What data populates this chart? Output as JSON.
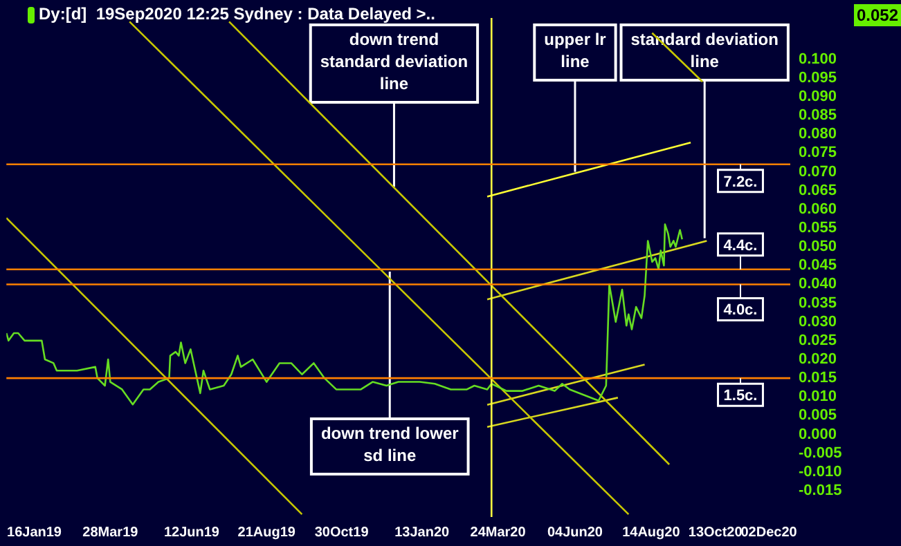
{
  "chart_data": {
    "type": "line",
    "title": "Dy:[d]  19Sep2020 12:25 Sydney : Data Delayed >..",
    "xlim": [
      "2018-12-21",
      "2020-12-22"
    ],
    "xticks": [
      {
        "value": "2019-01-16",
        "label": "16Jan19"
      },
      {
        "value": "2019-03-28",
        "label": "28Mar19"
      },
      {
        "value": "2019-06-12",
        "label": "12Jun19"
      },
      {
        "value": "2019-08-21",
        "label": "21Aug19"
      },
      {
        "value": "2019-10-30",
        "label": "30Oct19"
      },
      {
        "value": "2020-01-13",
        "label": "13Jan20"
      },
      {
        "value": "2020-03-24",
        "label": "24Mar20"
      },
      {
        "value": "2020-06-04",
        "label": "04Jun20"
      },
      {
        "value": "2020-08-14",
        "label": "14Aug20"
      },
      {
        "value": "2020-10-13",
        "label": "13Oct20"
      },
      {
        "value": "2020-12-02",
        "label": "02Dec20"
      }
    ],
    "ylim": [
      -0.022,
      0.111
    ],
    "yticks": [
      {
        "value": 0.1,
        "label": "0.100"
      },
      {
        "value": 0.095,
        "label": "0.095"
      },
      {
        "value": 0.09,
        "label": "0.090"
      },
      {
        "value": 0.085,
        "label": "0.085"
      },
      {
        "value": 0.08,
        "label": "0.080"
      },
      {
        "value": 0.075,
        "label": "0.075"
      },
      {
        "value": 0.07,
        "label": "0.070"
      },
      {
        "value": 0.065,
        "label": "0.065"
      },
      {
        "value": 0.06,
        "label": "0.060"
      },
      {
        "value": 0.055,
        "label": "0.055"
      },
      {
        "value": 0.05,
        "label": "0.050"
      },
      {
        "value": 0.045,
        "label": "0.045"
      },
      {
        "value": 0.04,
        "label": "0.040"
      },
      {
        "value": 0.035,
        "label": "0.035"
      },
      {
        "value": 0.03,
        "label": "0.030"
      },
      {
        "value": 0.025,
        "label": "0.025"
      },
      {
        "value": 0.02,
        "label": "0.020"
      },
      {
        "value": 0.015,
        "label": "0.015"
      },
      {
        "value": 0.01,
        "label": "0.010"
      },
      {
        "value": 0.005,
        "label": "0.005"
      },
      {
        "value": 0,
        "label": "0.000"
      },
      {
        "value": -0.005,
        "label": "-0.005"
      },
      {
        "value": -0.01,
        "label": "-0.010"
      },
      {
        "value": -0.015,
        "label": "-0.015"
      }
    ],
    "legend": false,
    "marker": "none",
    "series": [
      {
        "color": "#66dd22",
        "x": [
          "2018-12-21",
          "2018-12-23",
          "2018-12-28",
          "2019-01-01",
          "2019-01-07",
          "2019-01-23",
          "2019-01-26",
          "2019-02-03",
          "2019-02-06",
          "2019-02-25",
          "2019-03-14",
          "2019-03-16",
          "2019-03-23",
          "2019-03-26",
          "2019-03-28",
          "2019-04-08",
          "2019-04-18",
          "2019-04-28",
          "2019-05-04",
          "2019-05-12",
          "2019-05-22",
          "2019-05-23",
          "2019-05-28",
          "2019-05-31",
          "2019-06-02",
          "2019-06-06",
          "2019-06-11",
          "2019-06-20",
          "2019-06-23",
          "2019-06-29",
          "2019-07-12",
          "2019-07-19",
          "2019-07-25",
          "2019-07-28",
          "2019-08-08",
          "2019-08-21",
          "2019-09-02",
          "2019-09-13",
          "2019-09-23",
          "2019-10-04",
          "2019-10-14",
          "2019-10-25",
          "2019-11-17",
          "2019-11-28",
          "2019-12-11",
          "2019-12-22",
          "2020-01-11",
          "2020-01-25",
          "2020-02-09",
          "2020-02-24",
          "2020-03-02",
          "2020-03-14",
          "2020-03-18",
          "2020-04-01",
          "2020-04-16",
          "2020-05-01",
          "2020-05-16",
          "2020-05-23",
          "2020-05-30",
          "2020-06-26",
          "2020-07-03",
          "2020-07-06",
          "2020-07-12",
          "2020-07-18",
          "2020-07-22",
          "2020-07-24",
          "2020-07-27",
          "2020-07-31",
          "2020-08-05",
          "2020-08-08",
          "2020-08-11",
          "2020-08-15",
          "2020-08-18",
          "2020-08-21",
          "2020-08-23",
          "2020-08-26",
          "2020-08-27",
          "2020-08-30",
          "2020-09-01",
          "2020-09-04",
          "2020-09-06",
          "2020-09-10",
          "2020-09-12"
        ],
        "values": [
          0.027,
          0.025,
          0.027,
          0.027,
          0.025,
          0.025,
          0.02,
          0.019,
          0.017,
          0.017,
          0.018,
          0.015,
          0.013,
          0.02,
          0.014,
          0.012,
          0.008,
          0.012,
          0.012,
          0.014,
          0.015,
          0.021,
          0.022,
          0.021,
          0.0245,
          0.019,
          0.0227,
          0.011,
          0.017,
          0.012,
          0.013,
          0.016,
          0.021,
          0.018,
          0.02,
          0.014,
          0.019,
          0.019,
          0.016,
          0.019,
          0.015,
          0.012,
          0.012,
          0.014,
          0.013,
          0.014,
          0.014,
          0.0135,
          0.012,
          0.012,
          0.013,
          0.012,
          0.0135,
          0.0116,
          0.0116,
          0.013,
          0.0116,
          0.0135,
          0.012,
          0.009,
          0.013,
          0.04,
          0.03,
          0.0386,
          0.029,
          0.032,
          0.028,
          0.034,
          0.031,
          0.037,
          0.0516,
          0.046,
          0.047,
          0.044,
          0.049,
          0.045,
          0.056,
          0.0534,
          0.05,
          0.0516,
          0.05,
          0.0545,
          0.052
        ]
      },
      {
        "color": "#c8c800",
        "x": [
          "2018-12-21",
          "2019-09-23"
        ],
        "values": [
          0.0577,
          -0.0213
        ]
      },
      {
        "color": "#c8c800",
        "x": [
          "2019-04-15",
          "2020-07-24"
        ],
        "values": [
          0.11,
          -0.0213
        ]
      },
      {
        "color": "#c8c800",
        "x": [
          "2019-07-17",
          "2020-08-31"
        ],
        "values": [
          0.11,
          -0.008
        ]
      },
      {
        "color": "#c8c800",
        "x": [
          "2020-08-15",
          "2020-10-01"
        ],
        "values": [
          0.107,
          0.094
        ]
      },
      {
        "color": "#ffff33",
        "x": [
          "2020-03-14",
          "2020-09-20"
        ],
        "values": [
          0.0634,
          0.0778
        ]
      },
      {
        "color": "#d8d820",
        "x": [
          "2020-03-14",
          "2020-10-05"
        ],
        "values": [
          0.036,
          0.0516
        ]
      },
      {
        "color": "#d8d820",
        "x": [
          "2020-03-14",
          "2020-08-08"
        ],
        "values": [
          0.0079,
          0.0186
        ]
      },
      {
        "color": "#d8d820",
        "x": [
          "2020-03-14",
          "2020-07-14"
        ],
        "values": [
          0.002,
          0.0098
        ]
      }
    ],
    "ref_lines": [
      {
        "axis": "x",
        "value": "2020-03-18",
        "color": "#ffff40"
      },
      {
        "axis": "y",
        "value": 0.072,
        "label": "7.2c.",
        "color": "#ff8000"
      },
      {
        "axis": "y",
        "value": 0.044,
        "label": "4.4c.",
        "color": "#ff8000"
      },
      {
        "axis": "y",
        "value": 0.04,
        "label": "4.0c.",
        "color": "#ff8000"
      },
      {
        "axis": "y",
        "value": 0.015,
        "label": "1.5c.",
        "color": "#ff8000"
      }
    ],
    "annotations": [
      {
        "text": "down trend standard deviation line",
        "x": "2019-12-18",
        "y": 0.066
      },
      {
        "text": "upper lr line",
        "x": "2020-06-04",
        "y": 0.07
      },
      {
        "text": "standard deviation line",
        "x": "2020-10-03",
        "y": 0.0523
      },
      {
        "text": "down trend lower sd line",
        "x": "2019-12-14",
        "y": 0.0434
      },
      "0.052"
    ]
  }
}
